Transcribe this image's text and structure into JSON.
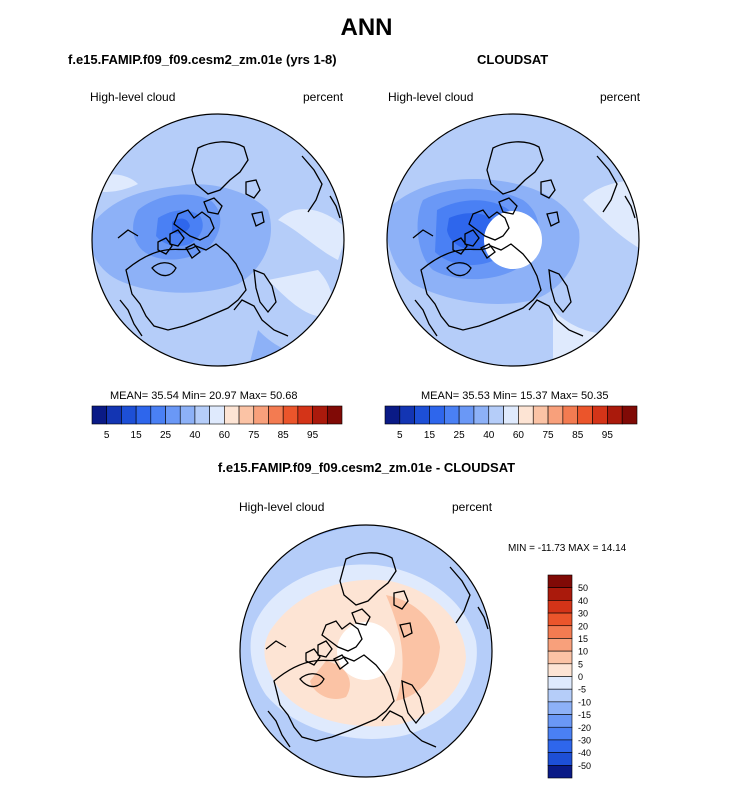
{
  "page": {
    "title": "ANN"
  },
  "chart_data": [
    {
      "type": "heatmap",
      "projection": "polar-stereographic",
      "title": "f.e15.FAMIP.f09_f09.cesm2_zm.01e (yrs 1-8)",
      "variable_label": "High-level cloud",
      "units_label": "percent",
      "stats": {
        "mean_label": "MEAN=",
        "mean": "35.54",
        "min_label": "Min=",
        "min": "20.97",
        "max_label": "Max=",
        "max": "50.68"
      },
      "colorbar": {
        "orientation": "horizontal",
        "levels": [
          5,
          10,
          15,
          20,
          25,
          30,
          40,
          50,
          60,
          70,
          75,
          80,
          85,
          90,
          95
        ],
        "tick_labels": [
          "5",
          "15",
          "25",
          "40",
          "60",
          "75",
          "85",
          "95"
        ],
        "colors": [
          "#0a1a86",
          "#1335b3",
          "#1d4fd6",
          "#2e66ec",
          "#4a80f4",
          "#6a98f6",
          "#8db1f7",
          "#b5cdf9",
          "#dfeafd",
          "#fde4d4",
          "#fbc3a5",
          "#f8a07b",
          "#f37b51",
          "#eb552b",
          "#d43418",
          "#aa1a0c",
          "#800a06"
        ]
      }
    },
    {
      "type": "heatmap",
      "projection": "polar-stereographic",
      "title": "CLOUDSAT",
      "variable_label": "High-level cloud",
      "units_label": "percent",
      "stats": {
        "mean_label": "MEAN=",
        "mean": "35.53",
        "min_label": "Min=",
        "min": "15.37",
        "max_label": "Max=",
        "max": "50.35"
      },
      "colorbar": {
        "orientation": "horizontal",
        "levels": [
          5,
          10,
          15,
          20,
          25,
          30,
          40,
          50,
          60,
          70,
          75,
          80,
          85,
          90,
          95
        ],
        "tick_labels": [
          "5",
          "15",
          "25",
          "40",
          "60",
          "75",
          "85",
          "95"
        ],
        "colors": [
          "#0a1a86",
          "#1335b3",
          "#1d4fd6",
          "#2e66ec",
          "#4a80f4",
          "#6a98f6",
          "#8db1f7",
          "#b5cdf9",
          "#dfeafd",
          "#fde4d4",
          "#fbc3a5",
          "#f8a07b",
          "#f37b51",
          "#eb552b",
          "#d43418",
          "#aa1a0c",
          "#800a06"
        ]
      }
    },
    {
      "type": "heatmap",
      "projection": "polar-stereographic",
      "title": "f.e15.FAMIP.f09_f09.cesm2_zm.01e - CLOUDSAT",
      "variable_label": "High-level cloud",
      "units_label": "percent",
      "stats": {
        "min_label": "MIN =",
        "min": "-11.73",
        "max_label": "MAX =",
        "max": "14.14"
      },
      "colorbar": {
        "orientation": "vertical",
        "tick_labels": [
          "50",
          "40",
          "30",
          "20",
          "15",
          "10",
          "5",
          "0",
          "-5",
          "-10",
          "-15",
          "-20",
          "-30",
          "-40",
          "-50"
        ],
        "colors": [
          "#800a06",
          "#aa1a0c",
          "#d43418",
          "#eb552b",
          "#f37b51",
          "#f8a07b",
          "#fbc3a5",
          "#fde4d4",
          "#dfeafd",
          "#b5cdf9",
          "#8db1f7",
          "#6a98f6",
          "#4a80f4",
          "#2e66ec",
          "#1d4fd6",
          "#0a1a86"
        ]
      }
    }
  ]
}
